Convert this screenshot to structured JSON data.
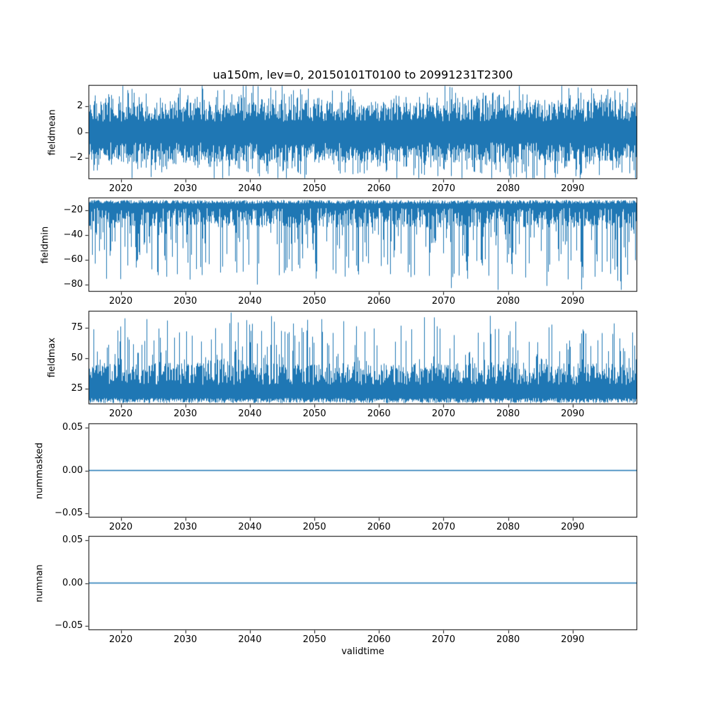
{
  "figure": {
    "title": "ua150m, lev=0, 20150101T0100 to 20991231T2300",
    "xlabel": "validtime",
    "line_color": "#1f77b4",
    "axis_color": "#000000",
    "text_color": "#000000",
    "background": "#ffffff"
  },
  "x_axis": {
    "label": "validtime",
    "range": [
      2015,
      2100
    ],
    "ticks": [
      {
        "value": 2020,
        "label": "2020"
      },
      {
        "value": 2030,
        "label": "2030"
      },
      {
        "value": 2040,
        "label": "2040"
      },
      {
        "value": 2050,
        "label": "2050"
      },
      {
        "value": 2060,
        "label": "2060"
      },
      {
        "value": 2070,
        "label": "2070"
      },
      {
        "value": 2080,
        "label": "2080"
      },
      {
        "value": 2090,
        "label": "2090"
      }
    ]
  },
  "chart_data": [
    {
      "type": "line",
      "name": "fieldmean",
      "ylabel": "fieldmean",
      "x_range": [
        2015,
        2100
      ],
      "ylim": [
        -3.6,
        3.6
      ],
      "yticks": [
        {
          "value": 2,
          "label": "2"
        },
        {
          "value": 0,
          "label": "0"
        },
        {
          "value": -2,
          "label": "−2"
        }
      ],
      "summary": "Dense stationary noise centred on 0 over the full 2015-2100 span; typical envelope about ±1 to ±3 with rare extremes near ±3.5.",
      "gen": {
        "kind": "sym",
        "seed": 11,
        "base": 0.8,
        "r1": 1.5,
        "p": 0.35,
        "r2": 1.6,
        "clamp": 3.52
      }
    },
    {
      "type": "line",
      "name": "fieldmin",
      "ylabel": "fieldmin",
      "x_range": [
        2015,
        2100
      ],
      "ylim": [
        -86,
        -9.5
      ],
      "yticks": [
        {
          "value": -20,
          "label": "−20"
        },
        {
          "value": -40,
          "label": "−40"
        },
        {
          "value": -60,
          "label": "−60"
        },
        {
          "value": -80,
          "label": "−80"
        }
      ],
      "summary": "Values hover near −12 to −35 with frequent downward spikes reaching −40 to about −85 across the whole period.",
      "gen": {
        "kind": "min",
        "seed": 22,
        "topBase": -11.5,
        "topJit": 3,
        "base": 18,
        "r1": 16,
        "p": 0.35,
        "r2": 52,
        "clamp": -84.5
      }
    },
    {
      "type": "line",
      "name": "fieldmax",
      "ylabel": "fieldmax",
      "x_range": [
        2015,
        2100
      ],
      "ylim": [
        12,
        89
      ],
      "yticks": [
        {
          "value": 75,
          "label": "75"
        },
        {
          "value": 50,
          "label": "50"
        },
        {
          "value": 25,
          "label": "25"
        }
      ],
      "summary": "Values hover near 15 to 45 with frequent upward spikes reaching 50 to about 88 across the whole period.",
      "gen": {
        "kind": "max",
        "seed": 33,
        "botBase": 13,
        "botJit": 4,
        "base": 28,
        "r1": 18,
        "p": 0.3,
        "r2": 42,
        "clamp": 88
      }
    },
    {
      "type": "line",
      "name": "nummasked",
      "ylabel": "nummasked",
      "x_range": [
        2015,
        2100
      ],
      "ylim": [
        -0.055,
        0.055
      ],
      "yticks": [
        {
          "value": 0.05,
          "label": "0.05"
        },
        {
          "value": 0,
          "label": "0.00"
        },
        {
          "value": -0.05,
          "label": "−0.05"
        }
      ],
      "summary": "Constant 0.00 for the entire period (flat horizontal line).",
      "gen": {
        "kind": "const",
        "seed": 44,
        "value": 0
      }
    },
    {
      "type": "line",
      "name": "numnan",
      "ylabel": "numnan",
      "x_range": [
        2015,
        2100
      ],
      "ylim": [
        -0.055,
        0.055
      ],
      "yticks": [
        {
          "value": 0.05,
          "label": "0.05"
        },
        {
          "value": 0,
          "label": "0.00"
        },
        {
          "value": -0.05,
          "label": "−0.05"
        }
      ],
      "summary": "Constant 0.00 for the entire period (flat horizontal line).",
      "gen": {
        "kind": "const",
        "seed": 55,
        "value": 0
      }
    }
  ]
}
